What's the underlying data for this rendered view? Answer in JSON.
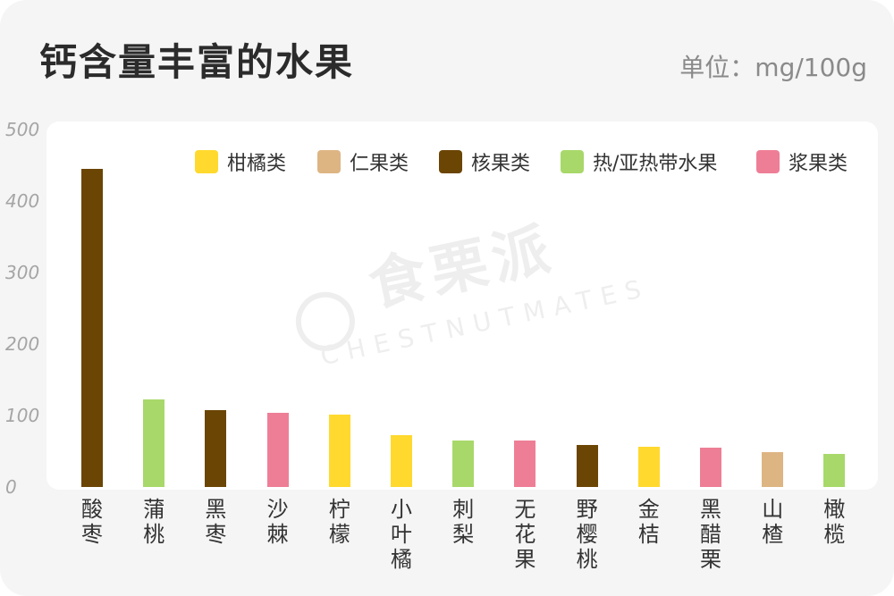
{
  "header": {
    "title": "钙含量丰富的水果",
    "unit": "单位：mg/100g"
  },
  "watermark": {
    "cn": "食栗派",
    "en": "CHESTNUTMATES"
  },
  "legend": [
    {
      "label": "柑橘类",
      "color": "#FFD92E"
    },
    {
      "label": "仁果类",
      "color": "#DDB583"
    },
    {
      "label": "核果类",
      "color": "#6B4504"
    },
    {
      "label": "热/亚热带水果",
      "color": "#A8D86A"
    },
    {
      "label": "浆果类",
      "color": "#EE7E96"
    }
  ],
  "chart_data": {
    "type": "bar",
    "title": "钙含量丰富的水果",
    "ylabel": "单位：mg/100g",
    "ylim": [
      0,
      500
    ],
    "yticks": [
      "0",
      "100",
      "200",
      "300",
      "400",
      "500"
    ],
    "categories": [
      "酸枣",
      "蒲桃",
      "黑枣",
      "沙棘",
      "柠檬",
      "小叶橘",
      "刺梨",
      "无花果",
      "野樱桃",
      "金桔",
      "黑醋栗",
      "山楂",
      "橄榄"
    ],
    "values": [
      445,
      122,
      108,
      104,
      101,
      72,
      65,
      65,
      59,
      56,
      55,
      49,
      46
    ],
    "groups": [
      "核果类",
      "热/亚热带水果",
      "核果类",
      "浆果类",
      "柑橘类",
      "柑橘类",
      "热/亚热带水果",
      "浆果类",
      "核果类",
      "柑橘类",
      "浆果类",
      "仁果类",
      "热/亚热带水果"
    ],
    "grid": false,
    "legend_position": "top-right"
  }
}
